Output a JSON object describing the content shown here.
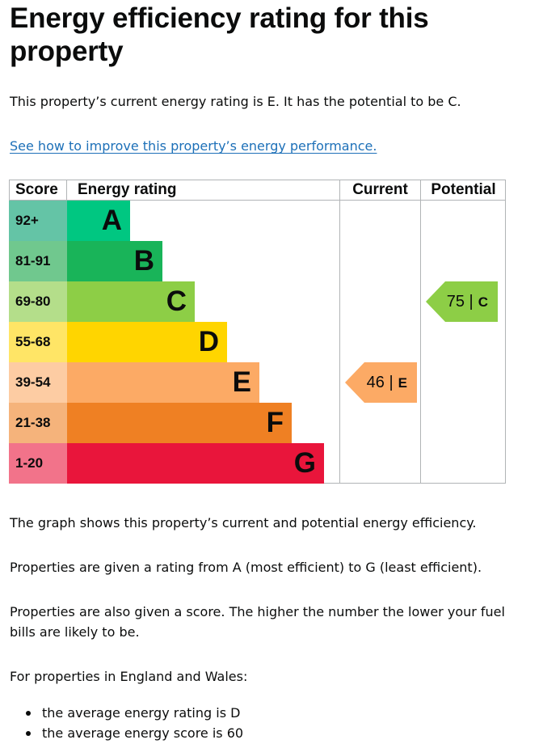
{
  "title": "Energy efficiency rating for this property",
  "intro": "This property’s current energy rating is E. It has the potential to be C.",
  "improve_link": "See how to improve this property’s energy performance.",
  "chart_data": {
    "type": "bar",
    "headers": {
      "score": "Score",
      "rating": "Energy rating",
      "current": "Current",
      "potential": "Potential"
    },
    "bands": [
      {
        "letter": "A",
        "score": "92+",
        "color": "#00c781",
        "score_color": "#64c4a6"
      },
      {
        "letter": "B",
        "score": "81-91",
        "color": "#19b459",
        "score_color": "#70c88e"
      },
      {
        "letter": "C",
        "score": "69-80",
        "color": "#8dce46",
        "score_color": "#b4de8a"
      },
      {
        "letter": "D",
        "score": "55-68",
        "color": "#ffd500",
        "score_color": "#ffe566"
      },
      {
        "letter": "E",
        "score": "39-54",
        "color": "#fcaa65",
        "score_color": "#fdcca3"
      },
      {
        "letter": "F",
        "score": "21-38",
        "color": "#ef8023",
        "score_color": "#f5b37b"
      },
      {
        "letter": "G",
        "score": "1-20",
        "color": "#e9153b",
        "score_color": "#f2738a"
      }
    ],
    "current": {
      "score": 46,
      "score_text": "46 |",
      "letter": "E",
      "color": "#fcaa65"
    },
    "potential": {
      "score": 75,
      "score_text": "75 |",
      "letter": "C",
      "color": "#8dce46"
    }
  },
  "graph_desc": "The graph shows this property’s current and potential energy efficiency.",
  "rating_desc": "Properties are given a rating from A (most efficient) to G (least efficient).",
  "score_desc": "Properties are also given a score. The higher the number the lower your fuel bills are likely to be.",
  "region_desc": "For properties in England and Wales:",
  "averages": [
    "the average energy rating is D",
    "the average energy score is 60"
  ]
}
